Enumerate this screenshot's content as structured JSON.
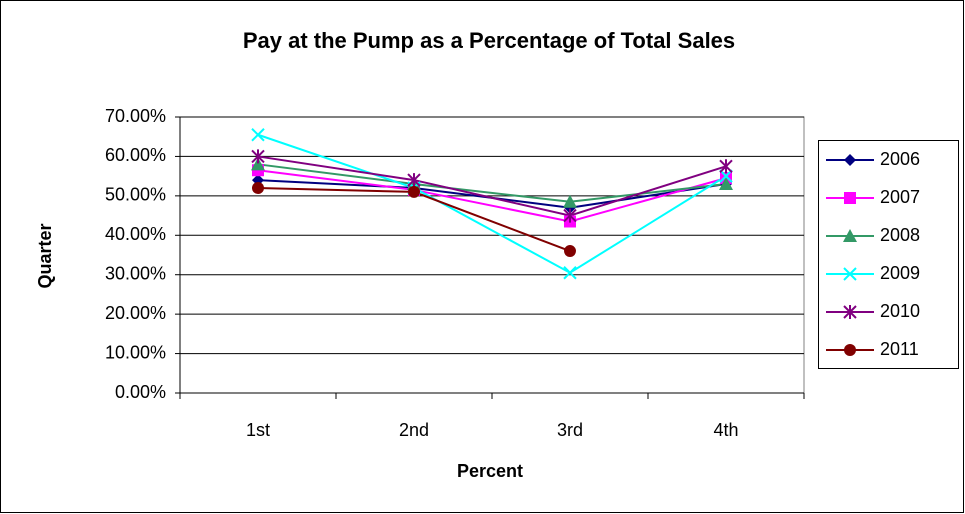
{
  "chart_data": {
    "type": "line",
    "title": "Pay at the Pump as a Percentage of Total Sales",
    "x_label": "Percent",
    "y_label": "Quarter",
    "categories": [
      "1st",
      "2nd",
      "3rd",
      "4th"
    ],
    "ylim": [
      0,
      70
    ],
    "yticks": [
      {
        "value": 0,
        "label": "0.00%"
      },
      {
        "value": 10,
        "label": "10.00%"
      },
      {
        "value": 20,
        "label": "20.00%"
      },
      {
        "value": 30,
        "label": "30.00%"
      },
      {
        "value": 40,
        "label": "40.00%"
      },
      {
        "value": 50,
        "label": "50.00%"
      },
      {
        "value": 60,
        "label": "60.00%"
      },
      {
        "value": 70,
        "label": "70.00%"
      }
    ],
    "grid": true,
    "legend": "right",
    "series": [
      {
        "name": "2006",
        "color": "#000080",
        "marker": "diamond",
        "values": [
          54,
          52,
          47,
          53
        ]
      },
      {
        "name": "2007",
        "color": "#ff00ff",
        "marker": "square",
        "values": [
          56.5,
          51.5,
          43.5,
          54.5
        ]
      },
      {
        "name": "2008",
        "color": "#339966",
        "marker": "triangle",
        "values": [
          58,
          53,
          48.5,
          53
        ]
      },
      {
        "name": "2009",
        "color": "#00ffff",
        "marker": "x",
        "values": [
          65.5,
          52,
          30.5,
          55
        ]
      },
      {
        "name": "2010",
        "color": "#800080",
        "marker": "asterisk",
        "values": [
          60,
          54,
          45,
          57.5
        ]
      },
      {
        "name": "2011",
        "color": "#800000",
        "marker": "circle",
        "values": [
          52,
          51,
          36,
          null
        ]
      }
    ]
  }
}
